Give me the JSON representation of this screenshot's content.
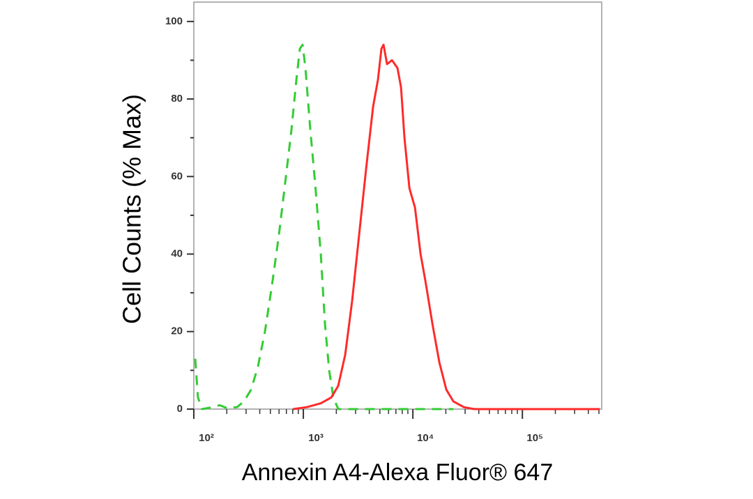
{
  "chart_data": {
    "type": "line",
    "xlabel": "Annexin A4-Alexa Fluor® 647",
    "ylabel": "Cell Counts (% Max)",
    "xscale": "log",
    "xlim": [
      100,
      530000
    ],
    "ylim": [
      0,
      105
    ],
    "xticks": [
      {
        "value": 100,
        "label": "10²"
      },
      {
        "value": 1000,
        "label": "10³"
      },
      {
        "value": 10000,
        "label": "10⁴"
      },
      {
        "value": 100000,
        "label": "10⁵"
      }
    ],
    "xminor_ticks": [
      200,
      300,
      400,
      500,
      600,
      700,
      800,
      900,
      2000,
      3000,
      4000,
      5000,
      6000,
      7000,
      8000,
      9000,
      20000,
      30000,
      40000,
      50000,
      60000,
      70000,
      80000,
      90000,
      200000,
      300000,
      400000,
      500000
    ],
    "yticks": [
      0,
      20,
      40,
      60,
      80,
      100
    ],
    "yminor_ticks": [
      10,
      30,
      50,
      70,
      90
    ],
    "series": [
      {
        "color": "#33cc33",
        "style": "dashed",
        "x": [
          103,
          109,
          119,
          149,
          172,
          199,
          248,
          287,
          333,
          385,
          446,
          517,
          599,
          693,
          779,
          864,
          929,
          985,
          1045,
          1158,
          1283,
          1443,
          1576,
          1721,
          1879,
          2082,
          2594,
          5401,
          11246,
          23410
        ],
        "values": [
          13,
          3,
          0,
          0.5,
          1,
          0.3,
          0.5,
          2,
          5,
          11,
          20,
          32,
          45,
          60,
          72,
          85,
          93,
          94,
          88,
          72,
          58,
          40,
          22,
          10,
          3,
          0,
          0,
          0,
          0,
          0
        ]
      },
      {
        "color": "#ff2a2a",
        "style": "solid",
        "x": [
          803,
          1076,
          1443,
          1798,
          2082,
          2411,
          2792,
          3233,
          3744,
          4335,
          4804,
          5169,
          5401,
          5812,
          6442,
          7242,
          7795,
          8386,
          9294,
          10450,
          11750,
          13020,
          15080,
          17460,
          20220,
          23410,
          29170,
          36350,
          101500,
          211300,
          509300
        ],
        "values": [
          0,
          0.5,
          1.5,
          3,
          6,
          14,
          28,
          45,
          62,
          78,
          85,
          93,
          94,
          89,
          90,
          88,
          83,
          70,
          57,
          52,
          40,
          33,
          22,
          12,
          5,
          2,
          0.5,
          0,
          0,
          0,
          0
        ]
      }
    ]
  }
}
